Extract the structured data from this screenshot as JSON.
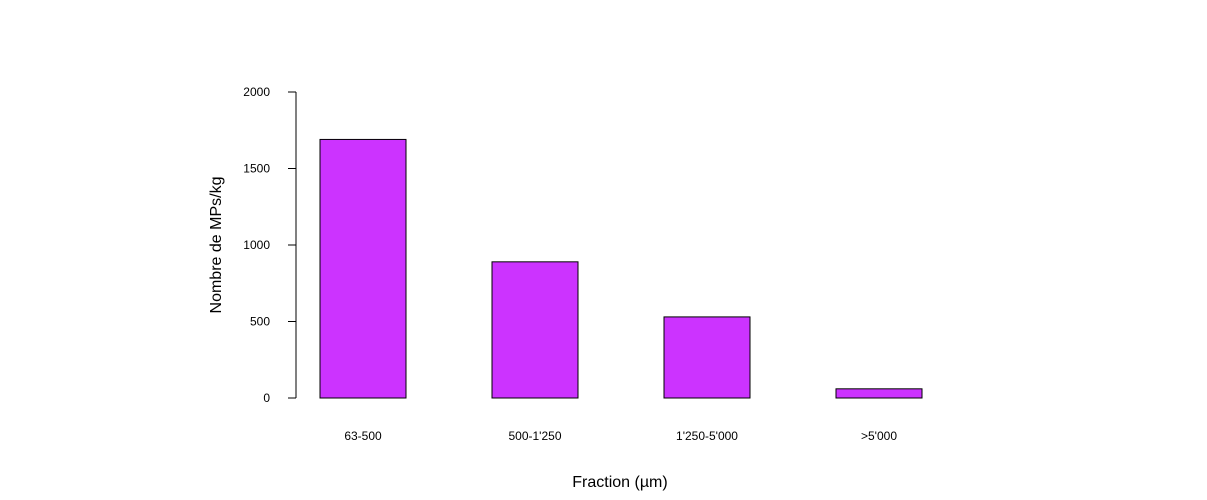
{
  "chart_data": {
    "type": "bar",
    "categories": [
      "63-500",
      "500-1'250",
      "1'250-5'000",
      ">5'000"
    ],
    "values": [
      1690,
      890,
      530,
      60
    ],
    "title": "",
    "xlabel": "Fraction (µm)",
    "ylabel": "Nombre de MPs/kg",
    "ylim": [
      0,
      2000
    ],
    "yticks": [
      0,
      500,
      1000,
      1500,
      2000
    ],
    "grid": false,
    "legend": "none",
    "bar_color": "#CC33FF",
    "bar_edge_color": "#000000"
  }
}
